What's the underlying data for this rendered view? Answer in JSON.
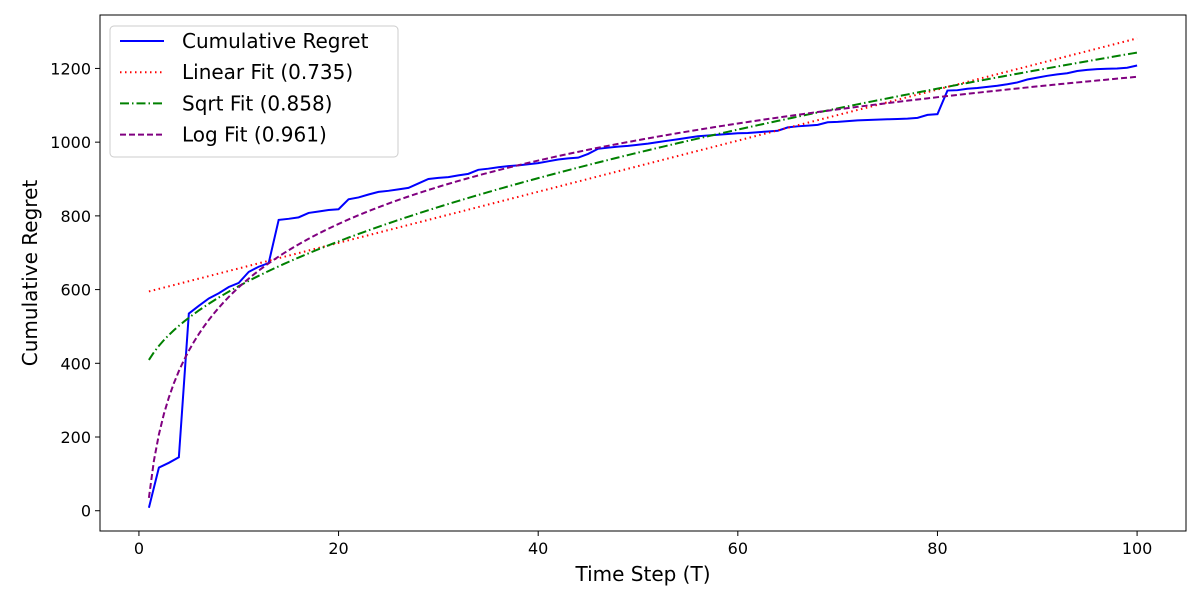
{
  "chart_data": {
    "type": "line",
    "title": "",
    "xlabel": "Time Step (T)",
    "ylabel": "Cumulative Regret",
    "xlim": [
      -3.9,
      104.9
    ],
    "ylim": [
      -55,
      1345
    ],
    "xticks": [
      0,
      20,
      40,
      60,
      80,
      100
    ],
    "yticks": [
      0,
      200,
      400,
      600,
      800,
      1000,
      1200
    ],
    "grid": false,
    "legend_position": "top-left",
    "x": [
      1,
      2,
      3,
      4,
      5,
      6,
      7,
      8,
      9,
      10,
      11,
      12,
      13,
      14,
      15,
      16,
      17,
      18,
      19,
      20,
      21,
      22,
      23,
      24,
      25,
      26,
      27,
      28,
      29,
      30,
      31,
      32,
      33,
      34,
      35,
      36,
      37,
      38,
      39,
      40,
      41,
      42,
      43,
      44,
      45,
      46,
      47,
      48,
      49,
      50,
      51,
      52,
      53,
      54,
      55,
      56,
      57,
      58,
      59,
      60,
      61,
      62,
      63,
      64,
      65,
      66,
      67,
      68,
      69,
      70,
      71,
      72,
      73,
      74,
      75,
      76,
      77,
      78,
      79,
      80,
      81,
      82,
      83,
      84,
      85,
      86,
      87,
      88,
      89,
      90,
      91,
      92,
      93,
      94,
      95,
      96,
      97,
      98,
      99,
      100
    ],
    "series": [
      {
        "name": "Cumulative Regret",
        "color": "#0000ff",
        "style": "solid",
        "values": [
          8,
          117,
          130,
          145,
          535,
          556,
          576,
          590,
          607,
          618,
          648,
          662,
          672,
          789,
          792,
          796,
          808,
          812,
          816,
          818,
          845,
          850,
          858,
          865,
          868,
          872,
          876,
          888,
          900,
          903,
          905,
          910,
          914,
          925,
          928,
          932,
          935,
          937,
          940,
          943,
          948,
          953,
          956,
          958,
          968,
          982,
          985,
          988,
          990,
          993,
          996,
          1000,
          1004,
          1008,
          1012,
          1016,
          1018,
          1020,
          1022,
          1024,
          1025,
          1027,
          1029,
          1031,
          1040,
          1043,
          1045,
          1047,
          1054,
          1055,
          1057,
          1059,
          1060,
          1061,
          1062,
          1063,
          1064,
          1066,
          1074,
          1076,
          1140,
          1141,
          1145,
          1147,
          1150,
          1153,
          1157,
          1162,
          1170,
          1175,
          1180,
          1184,
          1187,
          1193,
          1196,
          1198,
          1199,
          1200,
          1202,
          1208
        ]
      },
      {
        "name": "Linear Fit (0.735)",
        "color": "#ff0000",
        "style": "dotted",
        "fit": "linear",
        "params": {
          "a": 6.935,
          "b": 588.065
        }
      },
      {
        "name": "Sqrt Fit (0.858)",
        "color": "#008000",
        "style": "dashdot",
        "fit": "sqrt",
        "params": {
          "a": 92.667,
          "b": 316.333
        }
      },
      {
        "name": "Log Fit (0.961)",
        "color": "#800080",
        "style": "dashed",
        "fit": "log",
        "params": {
          "a": 248.06,
          "b": 35
        }
      }
    ]
  }
}
